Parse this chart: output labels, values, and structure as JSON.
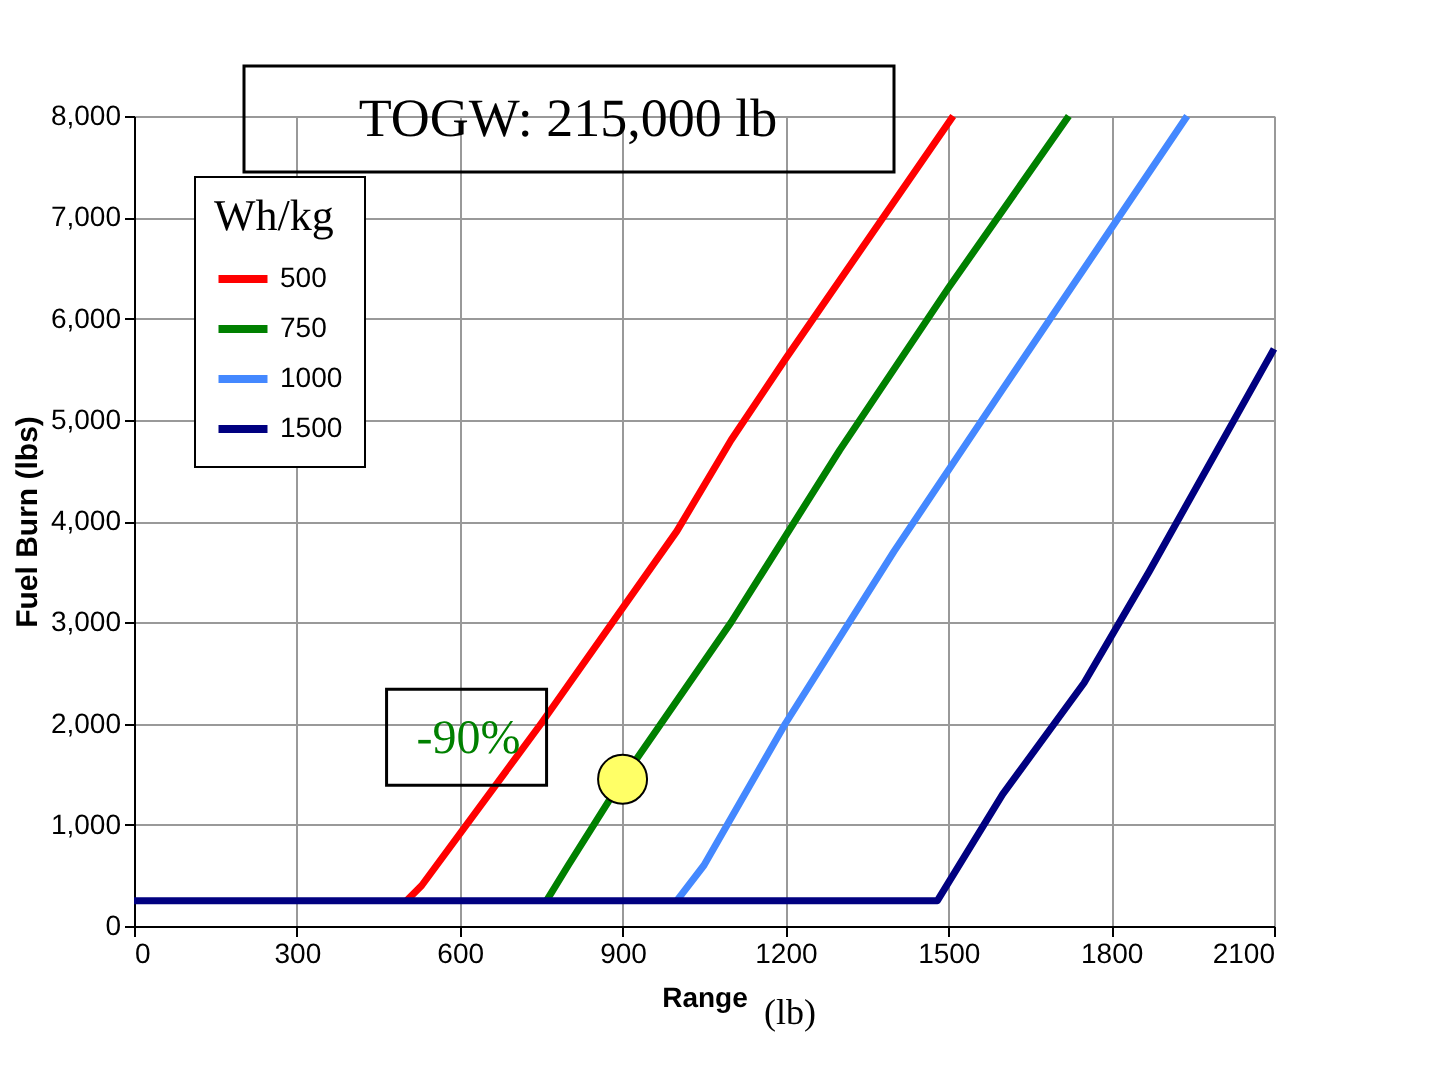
{
  "chart_data": {
    "type": "line",
    "title": "TOGW: 215,000 lb",
    "xlabel": "Range",
    "ylabel": "Fuel Burn (lbs)",
    "legend_title": "Wh/kg",
    "annotations": [
      {
        "text": "-90%",
        "x": 900,
        "y": 1450
      },
      "(lb)"
    ],
    "series": [
      {
        "name": "500",
        "color": "#ff0000",
        "x": [
          502,
          530,
          750,
          1000,
          1100,
          1200,
          1509
        ],
        "values": [
          250,
          400,
          2000,
          3900,
          4800,
          5600,
          8000
        ]
      },
      {
        "name": "750",
        "color": "#008000",
        "x": [
          760,
          800,
          900,
          1100,
          1300,
          1500,
          1722
        ],
        "values": [
          250,
          600,
          1450,
          3000,
          4700,
          6300,
          8000
        ]
      },
      {
        "name": "1000",
        "color": "#4488ff",
        "x": [
          1000,
          1050,
          1200,
          1400,
          1600,
          1940
        ],
        "values": [
          250,
          600,
          2000,
          3700,
          5300,
          8000
        ]
      },
      {
        "name": "1500",
        "color": "#000080",
        "x": [
          0,
          1480,
          1600,
          1750,
          1870,
          2100
        ],
        "values": [
          250,
          250,
          1300,
          2400,
          3500,
          5700
        ]
      }
    ],
    "xlim": [
      0,
      2100
    ],
    "xticks": [
      0,
      300,
      600,
      900,
      1200,
      1500,
      1800,
      2100
    ],
    "ylim": [
      0,
      8000
    ],
    "yticks": [
      {
        "value": 0,
        "label": "0"
      },
      {
        "value": 1000,
        "label": "1,000"
      },
      {
        "value": 2000,
        "label": "2,000"
      },
      {
        "value": 3000,
        "label": "3,000"
      },
      {
        "value": 4000,
        "label": "4,000"
      },
      {
        "value": 5000,
        "label": "5,000"
      },
      {
        "value": 6000,
        "label": "6,000"
      },
      {
        "value": 7000,
        "label": "7,000"
      },
      {
        "value": 8000,
        "label": "8,000"
      }
    ],
    "grid": true,
    "legend": "top left",
    "marker": "none",
    "line_style": "solid"
  }
}
